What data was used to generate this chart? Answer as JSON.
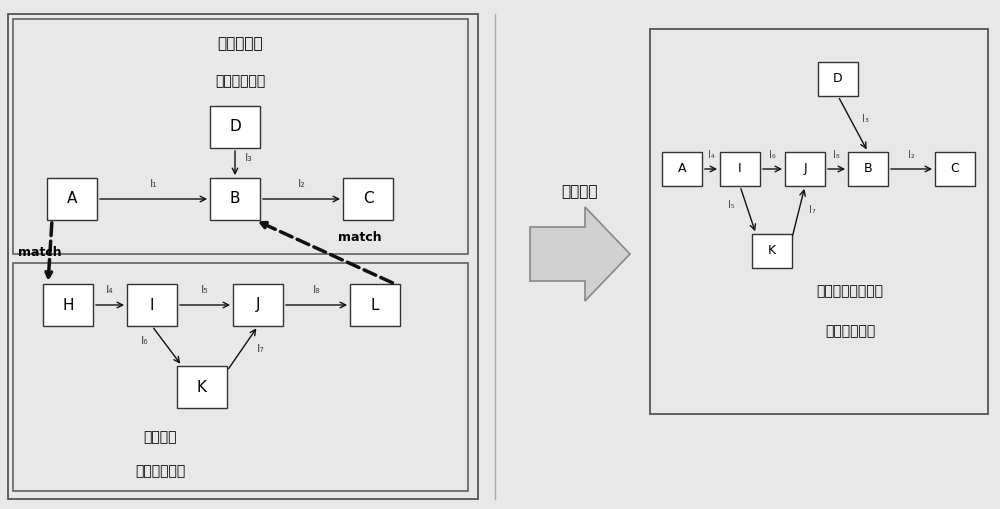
{
  "bg_color": "#e8e8e8",
  "box_bg": "#ffffff",
  "box_edge": "#333333",
  "title1": "运行时模型",
  "title2": "（主并模型）",
  "btitle1": "容错风格",
  "btitle2": "（被并模型）",
  "rtitle1": "容错软件体系结构",
  "rtitle2": "（目标模型）",
  "center_text": "模型合并",
  "match_text": "match"
}
